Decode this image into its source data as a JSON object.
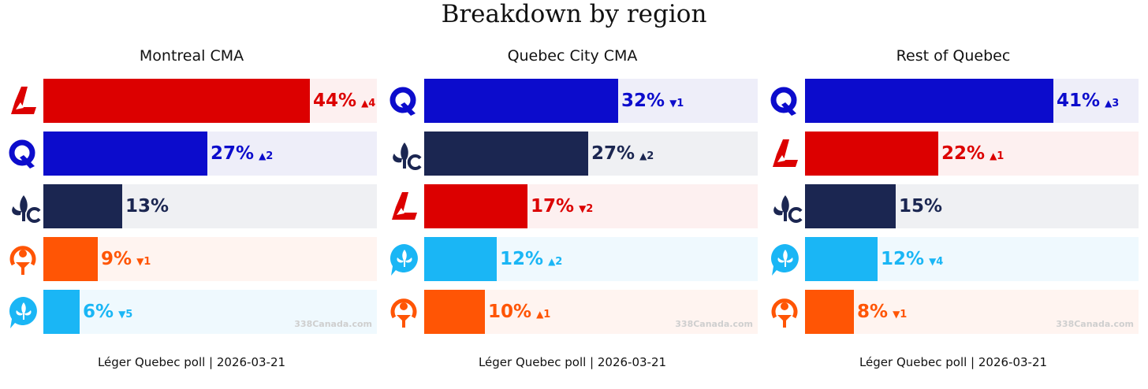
{
  "title": "Breakdown by region",
  "parties": {
    "PLQ": {
      "color": "#dc0000",
      "bg": "#fdf0f0",
      "icon": "plq-logo-icon"
    },
    "PQ": {
      "color": "#0c0ccc",
      "bg": "#eeeef9",
      "icon": "pq-logo-icon"
    },
    "CAQ": {
      "color": "#1b2651",
      "bg": "#eff0f3",
      "icon": "caq-logo-icon"
    },
    "QS": {
      "color": "#ff5505",
      "bg": "#fff4f0",
      "icon": "qs-logo-icon"
    },
    "PCQ": {
      "color": "#1ab6f5",
      "bg": "#eff9fe",
      "icon": "pcq-logo-icon"
    }
  },
  "chart_data": [
    {
      "type": "bar",
      "title": "Montreal CMA",
      "xlim": [
        0,
        55
      ],
      "footer": "Léger Quebec poll | 2026-03-21",
      "watermark": "338Canada.com",
      "bars": [
        {
          "party": "PLQ",
          "value": 44,
          "label": "44%",
          "change_dir": "up",
          "change": "4"
        },
        {
          "party": "PQ",
          "value": 27,
          "label": "27%",
          "change_dir": "up",
          "change": "2"
        },
        {
          "party": "CAQ",
          "value": 13,
          "label": "13%",
          "change_dir": "",
          "change": ""
        },
        {
          "party": "QS",
          "value": 9,
          "label": "9%",
          "change_dir": "down",
          "change": "1"
        },
        {
          "party": "PCQ",
          "value": 6,
          "label": "6%",
          "change_dir": "down",
          "change": "5"
        }
      ]
    },
    {
      "type": "bar",
      "title": "Quebec City CMA",
      "xlim": [
        0,
        55
      ],
      "footer": "Léger Quebec poll | 2026-03-21",
      "watermark": "338Canada.com",
      "bars": [
        {
          "party": "PQ",
          "value": 32,
          "label": "32%",
          "change_dir": "down",
          "change": "1"
        },
        {
          "party": "CAQ",
          "value": 27,
          "label": "27%",
          "change_dir": "up",
          "change": "2"
        },
        {
          "party": "PLQ",
          "value": 17,
          "label": "17%",
          "change_dir": "down",
          "change": "2"
        },
        {
          "party": "PCQ",
          "value": 12,
          "label": "12%",
          "change_dir": "up",
          "change": "2"
        },
        {
          "party": "QS",
          "value": 10,
          "label": "10%",
          "change_dir": "up",
          "change": "1"
        }
      ]
    },
    {
      "type": "bar",
      "title": "Rest of Quebec",
      "xlim": [
        0,
        55
      ],
      "footer": "Léger Quebec poll | 2026-03-21",
      "watermark": "338Canada.com",
      "bars": [
        {
          "party": "PQ",
          "value": 41,
          "label": "41%",
          "change_dir": "up",
          "change": "3"
        },
        {
          "party": "PLQ",
          "value": 22,
          "label": "22%",
          "change_dir": "up",
          "change": "1"
        },
        {
          "party": "CAQ",
          "value": 15,
          "label": "15%",
          "change_dir": "",
          "change": ""
        },
        {
          "party": "PCQ",
          "value": 12,
          "label": "12%",
          "change_dir": "down",
          "change": "4"
        },
        {
          "party": "QS",
          "value": 8,
          "label": "8%",
          "change_dir": "down",
          "change": "1"
        }
      ]
    }
  ]
}
